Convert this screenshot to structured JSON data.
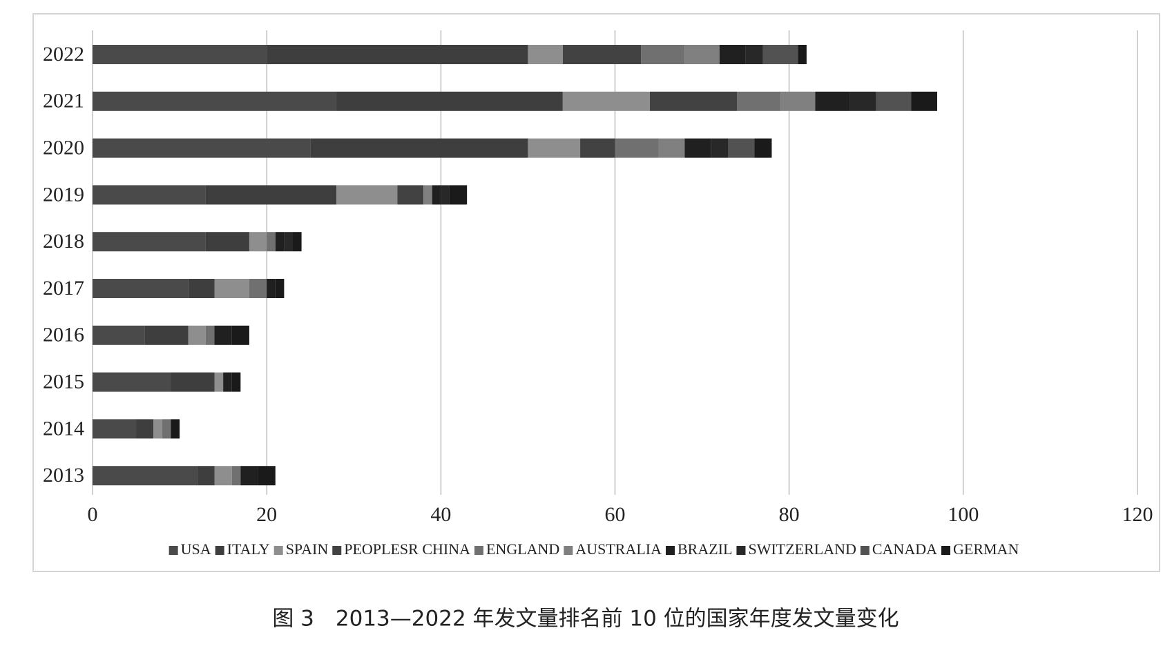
{
  "chart_data": {
    "type": "stacked_barh",
    "caption": "图 3　2013—2022 年发文量排名前 10 位的国家年度发文量变化",
    "categories": [
      "2022",
      "2021",
      "2020",
      "2019",
      "2018",
      "2017",
      "2016",
      "2015",
      "2014",
      "2013"
    ],
    "series": [
      {
        "name": "USA",
        "color": "#4a4a4a",
        "values": [
          20,
          28,
          25,
          13,
          13,
          11,
          6,
          9,
          5,
          12
        ]
      },
      {
        "name": "ITALY",
        "color": "#3e3e3e",
        "values": [
          30,
          26,
          25,
          15,
          5,
          3,
          5,
          5,
          2,
          2
        ]
      },
      {
        "name": "SPAIN",
        "color": "#8e8e8e",
        "values": [
          4,
          10,
          6,
          7,
          2,
          4,
          2,
          1,
          1,
          2
        ]
      },
      {
        "name": "PEOPLESR CHINA",
        "color": "#424242",
        "values": [
          9,
          10,
          4,
          3,
          0,
          0,
          0,
          0,
          0,
          0
        ]
      },
      {
        "name": "ENGLAND",
        "color": "#707070",
        "values": [
          5,
          5,
          5,
          0,
          1,
          2,
          1,
          0,
          1,
          1
        ]
      },
      {
        "name": "AUSTRALIA",
        "color": "#808080",
        "values": [
          4,
          4,
          3,
          1,
          0,
          0,
          0,
          0,
          0,
          0
        ]
      },
      {
        "name": "BRAZIL",
        "color": "#202020",
        "values": [
          3,
          4,
          3,
          1,
          1,
          1,
          2,
          1,
          0,
          2
        ]
      },
      {
        "name": "SWITZERLAND",
        "color": "#282828",
        "values": [
          2,
          3,
          2,
          1,
          1,
          0,
          0,
          0,
          0,
          0
        ]
      },
      {
        "name": "CANADA",
        "color": "#525252",
        "values": [
          4,
          4,
          3,
          0,
          0,
          0,
          0,
          0,
          0,
          0
        ]
      },
      {
        "name": "GERMAN",
        "color": "#1a1a1a",
        "values": [
          1,
          3,
          2,
          2,
          1,
          1,
          2,
          1,
          1,
          2
        ]
      }
    ],
    "xlim": [
      0,
      120
    ],
    "xticks": [
      0,
      20,
      40,
      60,
      80,
      100,
      120
    ],
    "grid": true,
    "legend": "bottom"
  }
}
